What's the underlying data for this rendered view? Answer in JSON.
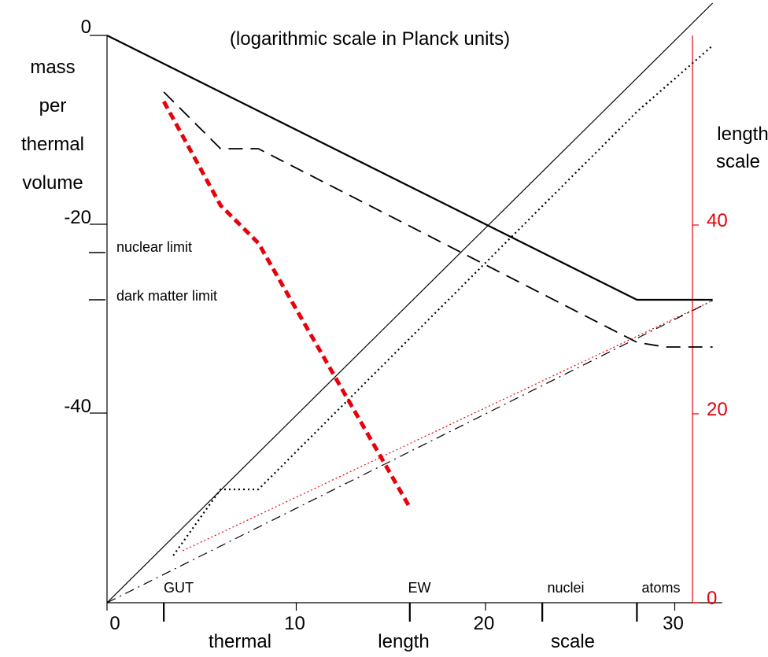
{
  "chart_data": {
    "type": "line",
    "title": "(logarithmic scale in Planck units)",
    "xlabel": [
      "thermal",
      "length",
      "scale"
    ],
    "ylabel_left": [
      "mass",
      "per",
      "thermal",
      "volume"
    ],
    "ylabel_right": [
      "length",
      "scale"
    ],
    "x_axis": {
      "range": [
        0,
        32
      ],
      "ticks": [
        0,
        10,
        20,
        30
      ],
      "tick_labels": [
        "0",
        "10",
        "20",
        "30"
      ]
    },
    "y_left_axis": {
      "range": [
        -60,
        0
      ],
      "ticks": [
        0,
        -20,
        -40
      ],
      "tick_labels": [
        "0",
        "-20",
        "-40"
      ]
    },
    "y_right_axis": {
      "range": [
        0,
        60
      ],
      "ticks": [
        0,
        20,
        40
      ],
      "tick_labels": [
        "0",
        "20",
        "40"
      ],
      "color": "#e8000b"
    },
    "epochs": [
      {
        "name": "GUT",
        "x": 3
      },
      {
        "name": "EW",
        "x": 16
      },
      {
        "name": "nuclei",
        "x": 23
      },
      {
        "name": "atoms",
        "x": 28
      }
    ],
    "limits": [
      {
        "name": "nuclear limit",
        "y": -23
      },
      {
        "name": "dark matter limit",
        "y": -28
      }
    ],
    "series": [
      {
        "style": "solid-thick",
        "axis": "left",
        "color": "#000000",
        "points": [
          [
            0,
            0
          ],
          [
            28,
            -28
          ],
          [
            32,
            -28
          ]
        ]
      },
      {
        "style": "dashed",
        "axis": "left",
        "color": "#000000",
        "points": [
          [
            3,
            -6
          ],
          [
            6,
            -12
          ],
          [
            8,
            -12
          ],
          [
            28,
            -32.5
          ],
          [
            29.5,
            -33
          ],
          [
            32,
            -33
          ]
        ]
      },
      {
        "style": "solid-thin",
        "axis": "right",
        "color": "#000000",
        "points": [
          [
            0,
            0
          ],
          [
            32,
            63.5
          ]
        ]
      },
      {
        "style": "dotted",
        "axis": "right",
        "color": "#000000",
        "points": [
          [
            3.5,
            5
          ],
          [
            6,
            12
          ],
          [
            8,
            12
          ],
          [
            28,
            52
          ],
          [
            32,
            59
          ]
        ]
      },
      {
        "style": "dashdot",
        "axis": "right",
        "color": "#000000",
        "points": [
          [
            0,
            0
          ],
          [
            32,
            32
          ]
        ]
      },
      {
        "style": "dotted-thin",
        "axis": "right",
        "color": "#e8000b",
        "points": [
          [
            4,
            5.5
          ],
          [
            32,
            32
          ]
        ]
      },
      {
        "style": "dashed-thick",
        "axis": "left",
        "color": "#e8000b",
        "points": [
          [
            3,
            -7
          ],
          [
            6,
            -18
          ],
          [
            8,
            -22
          ],
          [
            16,
            -50
          ]
        ]
      }
    ],
    "colors": {
      "right_axis": "#e8000b",
      "red_line": "#e8000b",
      "ink": "#000000"
    }
  }
}
